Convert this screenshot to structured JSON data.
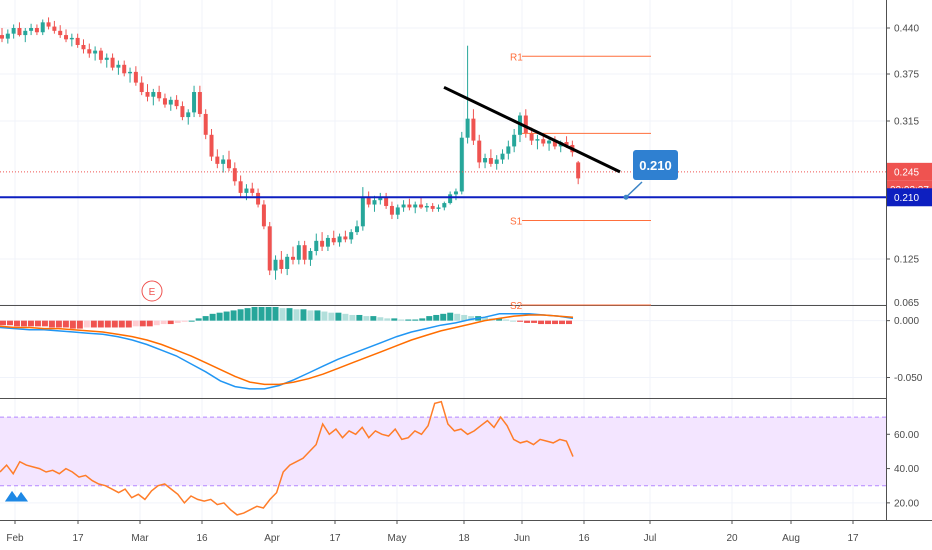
{
  "chart_data": {
    "type": "candlestick",
    "instrument_panel": {
      "price_axis_ticks": [
        "0.440",
        "0.375",
        "0.315",
        "0.125",
        "0.065"
      ],
      "ylim": [
        0.065,
        0.46
      ],
      "current_price": "0.245",
      "countdown": "03:02:27",
      "horizontal_line_price": "0.210",
      "callout_label": "0.210",
      "earnings_marker": "E",
      "levels": [
        {
          "name": "R1",
          "price": 0.4
        },
        {
          "name": "S1",
          "price": 0.178
        },
        {
          "name": "S2",
          "price": 0.065
        }
      ],
      "extra_level_price": 0.298,
      "candles": [
        [
          0.43,
          0.44,
          0.42,
          0.425
        ],
        [
          0.425,
          0.438,
          0.418,
          0.432
        ],
        [
          0.432,
          0.445,
          0.425,
          0.44
        ],
        [
          0.44,
          0.448,
          0.428,
          0.43
        ],
        [
          0.43,
          0.44,
          0.42,
          0.436
        ],
        [
          0.436,
          0.446,
          0.43,
          0.44
        ],
        [
          0.44,
          0.445,
          0.43,
          0.434
        ],
        [
          0.434,
          0.452,
          0.43,
          0.448
        ],
        [
          0.448,
          0.455,
          0.438,
          0.442
        ],
        [
          0.442,
          0.45,
          0.432,
          0.436
        ],
        [
          0.436,
          0.444,
          0.426,
          0.43
        ],
        [
          0.43,
          0.438,
          0.42,
          0.424
        ],
        [
          0.424,
          0.432,
          0.414,
          0.426
        ],
        [
          0.426,
          0.432,
          0.412,
          0.416
        ],
        [
          0.416,
          0.424,
          0.404,
          0.41
        ],
        [
          0.41,
          0.418,
          0.398,
          0.404
        ],
        [
          0.404,
          0.414,
          0.394,
          0.408
        ],
        [
          0.408,
          0.412,
          0.39,
          0.395
        ],
        [
          0.395,
          0.404,
          0.384,
          0.398
        ],
        [
          0.398,
          0.404,
          0.38,
          0.384
        ],
        [
          0.384,
          0.394,
          0.374,
          0.388
        ],
        [
          0.388,
          0.394,
          0.372,
          0.376
        ],
        [
          0.376,
          0.384,
          0.364,
          0.378
        ],
        [
          0.378,
          0.386,
          0.36,
          0.364
        ],
        [
          0.364,
          0.372,
          0.348,
          0.352
        ],
        [
          0.352,
          0.362,
          0.34,
          0.346
        ],
        [
          0.346,
          0.356,
          0.335,
          0.352
        ],
        [
          0.352,
          0.36,
          0.34,
          0.344
        ],
        [
          0.344,
          0.35,
          0.332,
          0.336
        ],
        [
          0.336,
          0.346,
          0.328,
          0.342
        ],
        [
          0.342,
          0.348,
          0.33,
          0.334
        ],
        [
          0.334,
          0.34,
          0.316,
          0.32
        ],
        [
          0.32,
          0.33,
          0.31,
          0.326
        ],
        [
          0.326,
          0.36,
          0.32,
          0.352
        ],
        [
          0.352,
          0.36,
          0.32,
          0.324
        ],
        [
          0.324,
          0.33,
          0.29,
          0.296
        ],
        [
          0.296,
          0.304,
          0.26,
          0.266
        ],
        [
          0.266,
          0.276,
          0.25,
          0.256
        ],
        [
          0.256,
          0.268,
          0.244,
          0.262
        ],
        [
          0.262,
          0.274,
          0.246,
          0.25
        ],
        [
          0.25,
          0.258,
          0.226,
          0.232
        ],
        [
          0.232,
          0.24,
          0.21,
          0.216
        ],
        [
          0.216,
          0.228,
          0.206,
          0.222
        ],
        [
          0.222,
          0.23,
          0.212,
          0.216
        ],
        [
          0.216,
          0.222,
          0.196,
          0.2
        ],
        [
          0.2,
          0.206,
          0.166,
          0.17
        ],
        [
          0.17,
          0.176,
          0.104,
          0.11
        ],
        [
          0.11,
          0.13,
          0.098,
          0.124
        ],
        [
          0.124,
          0.136,
          0.106,
          0.112
        ],
        [
          0.112,
          0.132,
          0.104,
          0.128
        ],
        [
          0.128,
          0.142,
          0.118,
          0.124
        ],
        [
          0.124,
          0.15,
          0.118,
          0.144
        ],
        [
          0.144,
          0.15,
          0.118,
          0.124
        ],
        [
          0.124,
          0.14,
          0.116,
          0.136
        ],
        [
          0.136,
          0.16,
          0.13,
          0.15
        ],
        [
          0.15,
          0.162,
          0.136,
          0.142
        ],
        [
          0.142,
          0.158,
          0.136,
          0.154
        ],
        [
          0.154,
          0.164,
          0.144,
          0.148
        ],
        [
          0.148,
          0.16,
          0.142,
          0.156
        ],
        [
          0.156,
          0.164,
          0.148,
          0.152
        ],
        [
          0.152,
          0.166,
          0.146,
          0.162
        ],
        [
          0.162,
          0.178,
          0.158,
          0.17
        ],
        [
          0.17,
          0.224,
          0.164,
          0.21
        ],
        [
          0.21,
          0.218,
          0.196,
          0.2
        ],
        [
          0.2,
          0.212,
          0.19,
          0.206
        ],
        [
          0.206,
          0.216,
          0.2,
          0.21
        ],
        [
          0.21,
          0.216,
          0.194,
          0.198
        ],
        [
          0.198,
          0.204,
          0.18,
          0.186
        ],
        [
          0.186,
          0.2,
          0.18,
          0.196
        ],
        [
          0.196,
          0.206,
          0.19,
          0.2
        ],
        [
          0.2,
          0.208,
          0.192,
          0.196
        ],
        [
          0.196,
          0.204,
          0.188,
          0.2
        ],
        [
          0.2,
          0.21,
          0.194,
          0.196
        ],
        [
          0.196,
          0.202,
          0.19,
          0.198
        ],
        [
          0.198,
          0.202,
          0.19,
          0.194
        ],
        [
          0.194,
          0.2,
          0.19,
          0.196
        ],
        [
          0.196,
          0.204,
          0.192,
          0.202
        ],
        [
          0.202,
          0.218,
          0.2,
          0.214
        ],
        [
          0.214,
          0.222,
          0.206,
          0.218
        ],
        [
          0.218,
          0.3,
          0.214,
          0.292
        ],
        [
          0.292,
          0.415,
          0.284,
          0.318
        ],
        [
          0.318,
          0.33,
          0.282,
          0.288
        ],
        [
          0.288,
          0.296,
          0.25,
          0.258
        ],
        [
          0.258,
          0.27,
          0.25,
          0.264
        ],
        [
          0.264,
          0.276,
          0.252,
          0.256
        ],
        [
          0.256,
          0.268,
          0.248,
          0.262
        ],
        [
          0.262,
          0.276,
          0.256,
          0.27
        ],
        [
          0.27,
          0.288,
          0.262,
          0.28
        ],
        [
          0.28,
          0.304,
          0.272,
          0.296
        ],
        [
          0.296,
          0.326,
          0.286,
          0.322
        ],
        [
          0.322,
          0.33,
          0.292,
          0.298
        ],
        [
          0.298,
          0.306,
          0.282,
          0.288
        ],
        [
          0.288,
          0.296,
          0.276,
          0.29
        ],
        [
          0.29,
          0.298,
          0.28,
          0.284
        ],
        [
          0.284,
          0.292,
          0.274,
          0.288
        ],
        [
          0.288,
          0.294,
          0.276,
          0.28
        ],
        [
          0.28,
          0.288,
          0.272,
          0.286
        ],
        [
          0.286,
          0.294,
          0.278,
          0.282
        ],
        [
          0.282,
          0.288,
          0.266,
          0.272
        ],
        [
          0.258,
          0.26,
          0.228,
          0.236
        ]
      ]
    },
    "macd_panel": {
      "y_ticks": [
        "0.000",
        "-0.050"
      ],
      "ylim": [
        -0.068,
        0.012
      ],
      "macd": [
        -0.006,
        -0.007,
        -0.008,
        -0.008,
        -0.009,
        -0.01,
        -0.011,
        -0.012,
        -0.014,
        -0.017,
        -0.021,
        -0.026,
        -0.031,
        -0.038,
        -0.045,
        -0.053,
        -0.058,
        -0.06,
        -0.06,
        -0.057,
        -0.052,
        -0.046,
        -0.04,
        -0.034,
        -0.029,
        -0.024,
        -0.019,
        -0.014,
        -0.01,
        -0.007,
        -0.004,
        -0.002,
        0.001,
        0.003,
        0.006,
        0.006,
        0.006,
        0.005,
        0.004,
        0.002
      ],
      "signal": [
        -0.005,
        -0.006,
        -0.006,
        -0.007,
        -0.007,
        -0.008,
        -0.009,
        -0.01,
        -0.012,
        -0.014,
        -0.017,
        -0.021,
        -0.026,
        -0.031,
        -0.037,
        -0.043,
        -0.049,
        -0.054,
        -0.056,
        -0.056,
        -0.054,
        -0.051,
        -0.047,
        -0.042,
        -0.037,
        -0.032,
        -0.027,
        -0.022,
        -0.017,
        -0.013,
        -0.009,
        -0.006,
        -0.003,
        0.0,
        0.002,
        0.004,
        0.005,
        0.005,
        0.004,
        0.003
      ],
      "histogram": [
        -0.004,
        -0.004,
        -0.005,
        -0.005,
        -0.005,
        -0.005,
        -0.005,
        -0.006,
        -0.006,
        -0.006,
        -0.007,
        -0.007,
        -0.006,
        -0.006,
        -0.006,
        -0.006,
        -0.006,
        -0.006,
        -0.006,
        -0.005,
        -0.005,
        -0.005,
        -0.004,
        -0.003,
        -0.003,
        -0.002,
        -0.001,
        0.0,
        0.002,
        0.004,
        0.006,
        0.007,
        0.008,
        0.009,
        0.01,
        0.011,
        0.012,
        0.012,
        0.012,
        0.012,
        0.011,
        0.011,
        0.01,
        0.01,
        0.009,
        0.009,
        0.008,
        0.007,
        0.007,
        0.006,
        0.005,
        0.005,
        0.004,
        0.004,
        0.003,
        0.002,
        0.002,
        0.001,
        0.001,
        0.001,
        0.002,
        0.004,
        0.005,
        0.006,
        0.007,
        0.006,
        0.005,
        0.004,
        0.004,
        0.003,
        0.002,
        0.002,
        0.001,
        0.0,
        -0.001,
        -0.002,
        -0.002,
        -0.003,
        -0.003,
        -0.003,
        -0.003,
        -0.003
      ]
    },
    "rsi_panel": {
      "y_ticks": [
        "60.00",
        "40.00",
        "20.00"
      ],
      "ylim": [
        10,
        80
      ],
      "band": [
        30,
        70
      ],
      "values": [
        38,
        42,
        37,
        44,
        42,
        41,
        40,
        38,
        39,
        37,
        40,
        38,
        35,
        36,
        33,
        31,
        30,
        28,
        26,
        28,
        23,
        25,
        22,
        27,
        30,
        31,
        28,
        25,
        20,
        24,
        22,
        21,
        22,
        19,
        20,
        16,
        13,
        14,
        16,
        18,
        17,
        22,
        26,
        38,
        42,
        44,
        46,
        50,
        54,
        66,
        60,
        63,
        58,
        62,
        60,
        64,
        58,
        62,
        60,
        59,
        63,
        57,
        58,
        62,
        60,
        65,
        78,
        79,
        66,
        62,
        63,
        60,
        62,
        65,
        68,
        64,
        70,
        65,
        57,
        55,
        56,
        54,
        57,
        56,
        55,
        57,
        56,
        47
      ]
    },
    "x_axis": {
      "labels": [
        "Feb",
        "17",
        "Mar",
        "16",
        "Apr",
        "17",
        "May",
        "18",
        "Jun",
        "16",
        "Jul",
        "20",
        "Aug",
        "17"
      ]
    }
  }
}
